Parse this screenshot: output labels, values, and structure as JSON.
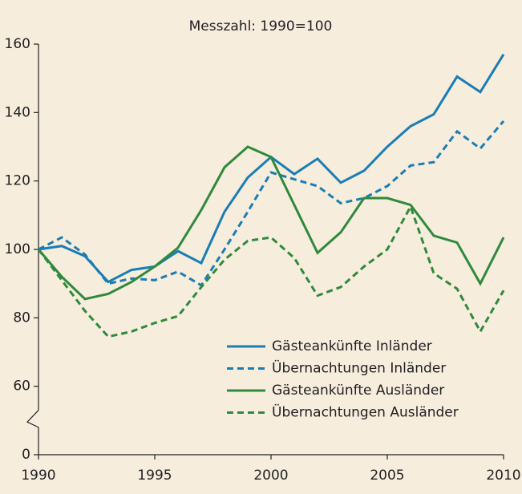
{
  "chart_data": {
    "type": "line",
    "title": "Messzahl: 1990=100",
    "x": [
      1990,
      1991,
      1992,
      1993,
      1994,
      1995,
      1996,
      1997,
      1998,
      1999,
      2000,
      2001,
      2002,
      2003,
      2004,
      2005,
      2006,
      2007,
      2008,
      2009,
      2010
    ],
    "xlim": [
      1990,
      2010
    ],
    "xticks": [
      1990,
      1995,
      2000,
      2005,
      2010
    ],
    "ylim": [
      0,
      160
    ],
    "yticks": [
      0,
      60,
      80,
      100,
      120,
      140,
      160
    ],
    "y_break": [
      0,
      60
    ],
    "legend": "lower right",
    "series": [
      {
        "name": "Gästeankünfte Inländer",
        "color": "#1b7db3",
        "dash": false,
        "values": [
          100,
          101,
          98,
          90.5,
          94,
          95,
          99.5,
          96,
          111,
          121,
          127,
          122,
          126.5,
          119.5,
          123,
          130,
          136,
          139.5,
          150.5,
          146,
          157
        ]
      },
      {
        "name": "Übernachtungen Inländer",
        "color": "#1b7db3",
        "dash": true,
        "values": [
          100,
          103.5,
          98.5,
          90,
          91.5,
          91,
          93.5,
          89.5,
          100,
          111,
          122.5,
          120.5,
          118.5,
          113.5,
          115,
          118.5,
          124.5,
          125.5,
          134.5,
          129.5,
          137.5
        ]
      },
      {
        "name": "Gästeankünfte Ausländer",
        "color": "#2f8a3b",
        "dash": false,
        "values": [
          100,
          92,
          85.5,
          87,
          90.5,
          95,
          100.5,
          111.5,
          124,
          130,
          127,
          113,
          99,
          105,
          115,
          115,
          113,
          104,
          102,
          90,
          103.5
        ]
      },
      {
        "name": "Übernachtungen Ausländer",
        "color": "#2f8a3b",
        "dash": true,
        "values": [
          100,
          91,
          82,
          74.5,
          76,
          78.5,
          80.5,
          89,
          97,
          102.5,
          103.5,
          97.5,
          86.5,
          89,
          95,
          100,
          112.5,
          93,
          88.5,
          76,
          88
        ]
      }
    ]
  }
}
